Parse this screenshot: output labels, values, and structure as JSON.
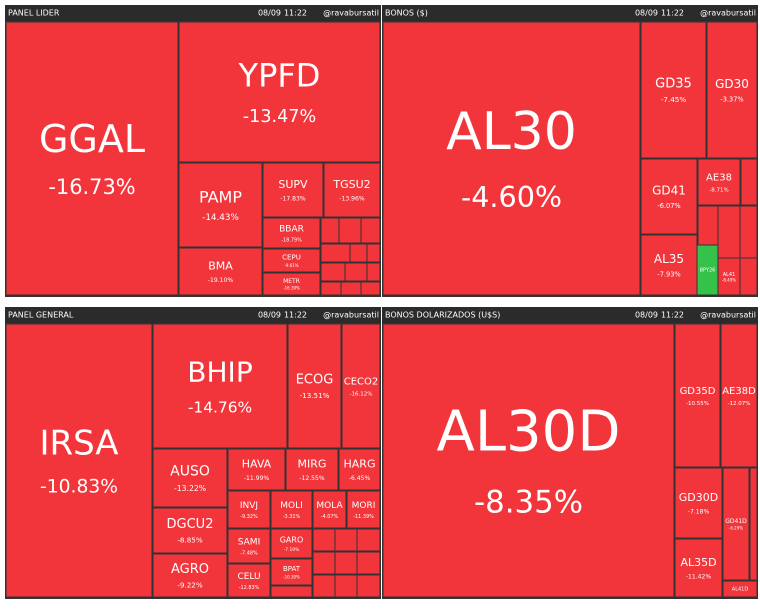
{
  "panels": [
    {
      "title": "PANEL LIDER",
      "date": "08/09",
      "time": "11:22",
      "handle": "@ravabursatil",
      "tiles": [
        {
          "label": "GGAL",
          "change": "-16.73%"
        },
        {
          "label": "YPFD",
          "change": "-13.47%"
        },
        {
          "label": "PAMP",
          "change": "-14.43%"
        },
        {
          "label": "SUPV",
          "change": "-17.83%"
        },
        {
          "label": "TGSU2",
          "change": "-13.96%"
        },
        {
          "label": "BBAR",
          "change": "-18.79%"
        },
        {
          "label": "BMA",
          "change": "-19.10%"
        },
        {
          "label": "CEPU",
          "change": "-9.61%"
        },
        {
          "label": "METR",
          "change": "-16.39%"
        }
      ]
    },
    {
      "title": "BONOS ($)",
      "date": "08/09",
      "time": "11:22",
      "handle": "@ravabursatil",
      "tiles": [
        {
          "label": "AL30",
          "change": "-4.60%"
        },
        {
          "label": "GD35",
          "change": "-7.45%"
        },
        {
          "label": "GD30",
          "change": "-3.37%"
        },
        {
          "label": "GD41",
          "change": "-6.07%"
        },
        {
          "label": "AE38",
          "change": "-8.71%"
        },
        {
          "label": "AL35",
          "change": "-7.93%"
        },
        {
          "label": "BPY26",
          "color": "#35c24a"
        },
        {
          "label": "AL41",
          "change": "-8.49%"
        }
      ]
    },
    {
      "title": "PANEL GENERAL",
      "date": "08/09",
      "time": "11:22",
      "handle": "@ravabursatil",
      "tiles": [
        {
          "label": "IRSA",
          "change": "-10.83%"
        },
        {
          "label": "BHIP",
          "change": "-14.76%"
        },
        {
          "label": "ECOG",
          "change": "-13.51%"
        },
        {
          "label": "CECO2",
          "change": "-16.12%"
        },
        {
          "label": "AUSO",
          "change": "-13.22%"
        },
        {
          "label": "DGCU2",
          "change": "-8.85%"
        },
        {
          "label": "AGRO",
          "change": "-9.22%"
        },
        {
          "label": "HAVA",
          "change": "-11.99%"
        },
        {
          "label": "MIRG",
          "change": "-12.55%"
        },
        {
          "label": "HARG",
          "change": "-6.45%"
        },
        {
          "label": "INVJ",
          "change": "-9.32%"
        },
        {
          "label": "MOLI",
          "change": "-3.31%"
        },
        {
          "label": "MOLA",
          "change": "-4.07%"
        },
        {
          "label": "MORI",
          "change": "-11.39%"
        },
        {
          "label": "SAMI",
          "change": "-7.48%"
        },
        {
          "label": "CELU",
          "change": "-12.83%"
        },
        {
          "label": "GARO",
          "change": "-7.19%"
        },
        {
          "label": "BPAT",
          "change": "-10.30%"
        }
      ]
    },
    {
      "title": "BONOS DOLARIZADOS (U$S)",
      "date": "08/09",
      "time": "11:22",
      "handle": "@ravabursatil",
      "tiles": [
        {
          "label": "AL30D",
          "change": "-8.35%"
        },
        {
          "label": "GD35D",
          "change": "-10.55%"
        },
        {
          "label": "AE38D",
          "change": "-12.07%"
        },
        {
          "label": "GD30D",
          "change": "-7.18%"
        },
        {
          "label": "GD41D",
          "change": "-6.29%"
        },
        {
          "label": "AL35D",
          "change": "-11.42%"
        },
        {
          "label": "AL41D"
        }
      ]
    }
  ],
  "tile_color": "#f2353b"
}
